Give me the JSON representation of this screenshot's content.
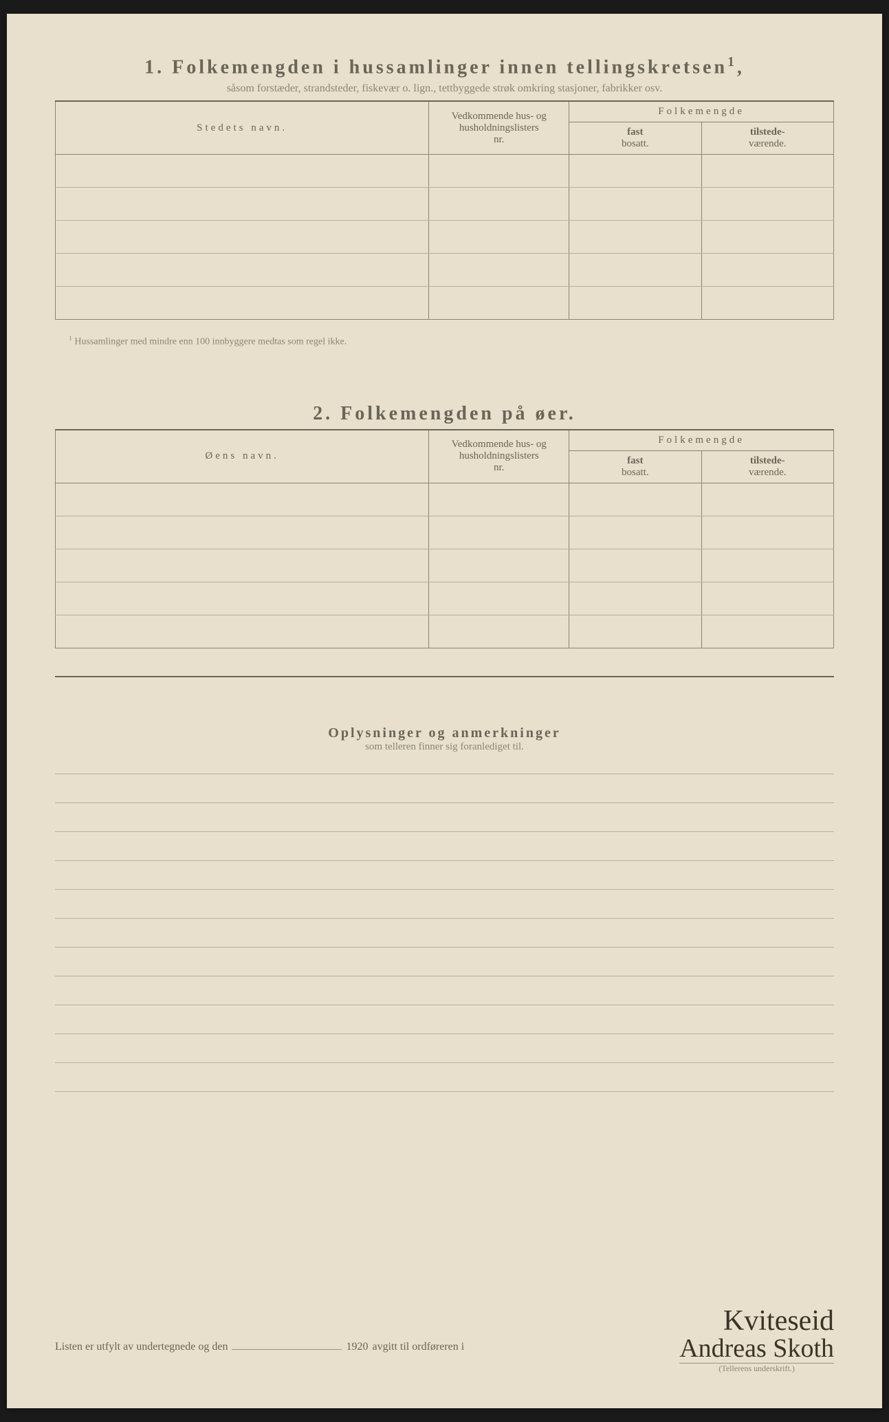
{
  "section1": {
    "number": "1.",
    "title": "Folkemengden i hussamlinger innen tellingskretsen",
    "sup": "1",
    "subtitle": "såsom forstæder, strandsteder, fiskevær o. lign., tettbyggede strøk omkring stasjoner, fabrikker osv.",
    "col_name": "Stedets navn.",
    "col_nr_l1": "Vedkommende hus- og",
    "col_nr_l2": "husholdningslisters",
    "col_nr_l3": "nr.",
    "col_folk": "Folkemengde",
    "col_fast_l1": "fast",
    "col_fast_l2": "bosatt.",
    "col_til_l1": "tilstede-",
    "col_til_l2": "værende.",
    "footnote_sup": "1",
    "footnote": "Hussamlinger med mindre enn 100 innbyggere medtas som regel ikke."
  },
  "section2": {
    "number": "2.",
    "title": "Folkemengden på øer.",
    "col_name": "Øens navn.",
    "col_nr_l1": "Vedkommende hus- og",
    "col_nr_l2": "husholdningslisters",
    "col_nr_l3": "nr.",
    "col_folk": "Folkemengde",
    "col_fast_l1": "fast",
    "col_fast_l2": "bosatt.",
    "col_til_l1": "tilstede-",
    "col_til_l2": "værende."
  },
  "section3": {
    "title": "Oplysninger og anmerkninger",
    "subtitle": "som telleren finner sig foranlediget til."
  },
  "footer": {
    "prefix": "Listen er utfylt av undertegnede og den",
    "year": "1920",
    "mid": "avgitt til ordføreren i",
    "place": "Kviteseid",
    "signature": "Andreas Skoth",
    "sig_label": "(Tellerens underskrift.)"
  },
  "layout": {
    "section1_rows": 5,
    "section2_rows": 5,
    "ruled_lines": 11
  }
}
